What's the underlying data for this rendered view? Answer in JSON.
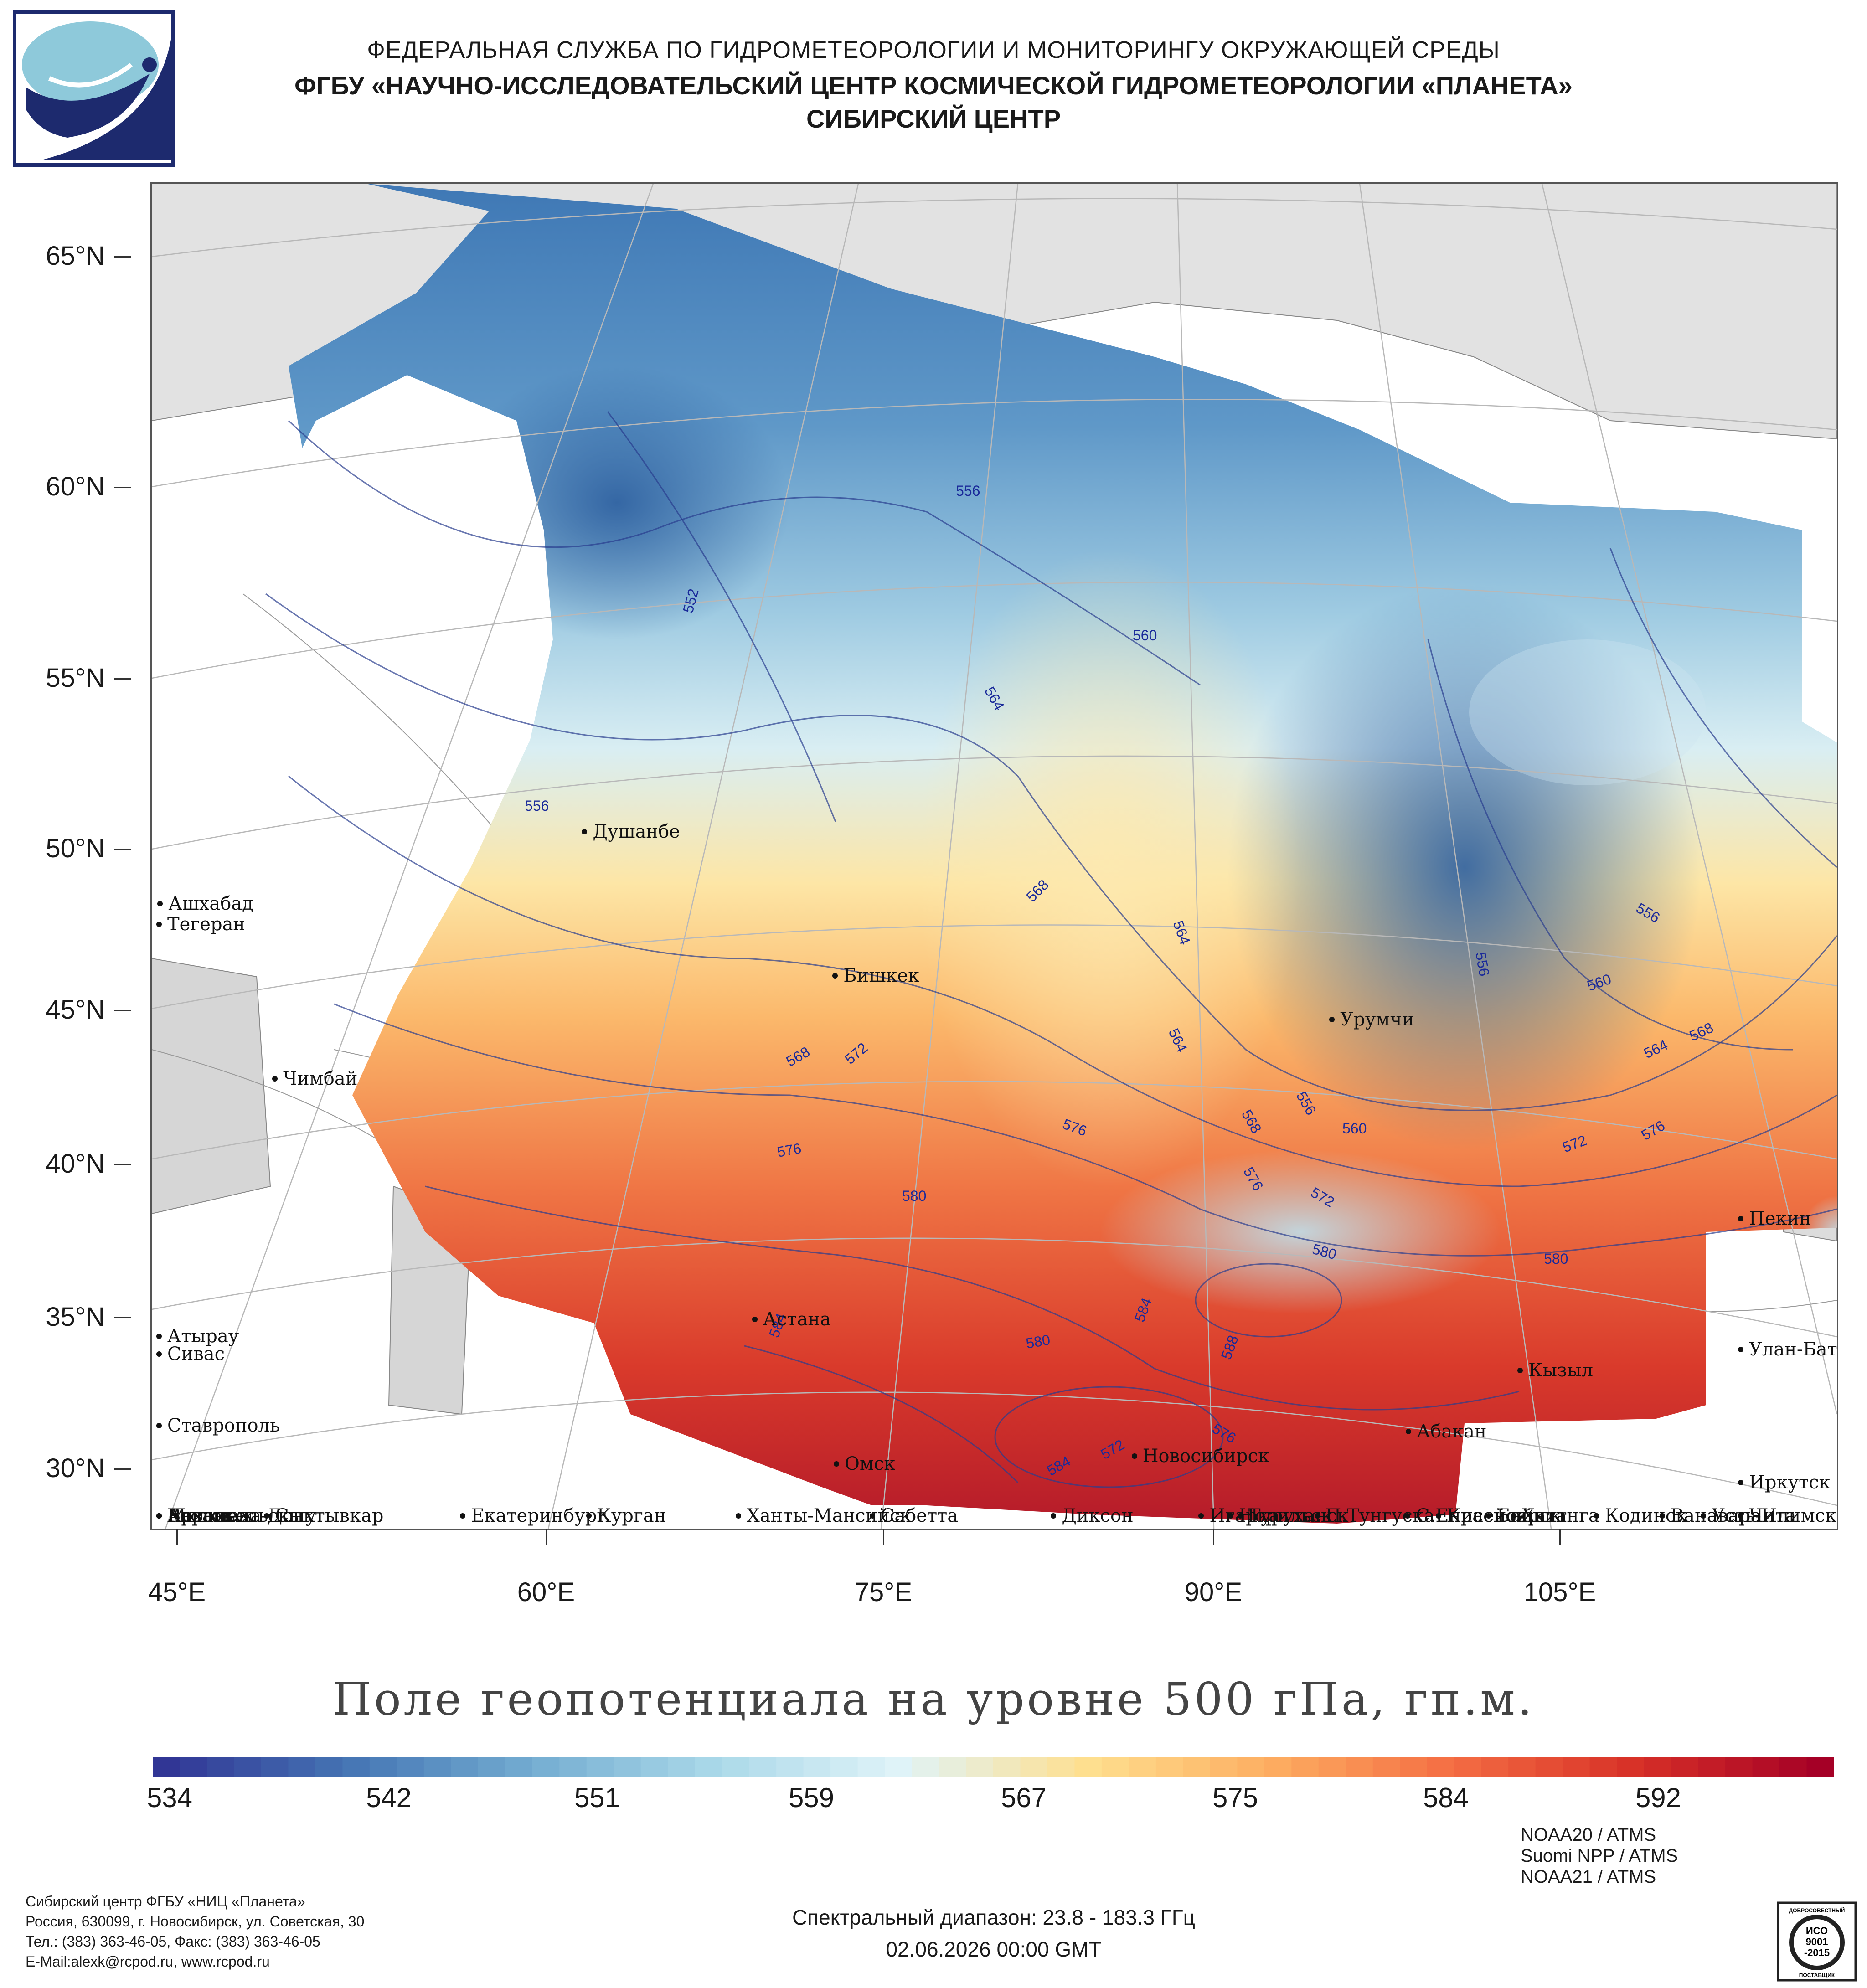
{
  "header": {
    "agency": "ФЕДЕРАЛЬНАЯ СЛУЖБА ПО ГИДРОМЕТЕОРОЛОГИИ И МОНИТОРИНГУ ОКРУЖАЮЩЕЙ СРЕДЫ",
    "org": "ФГБУ «НАУЧНО-ИССЛЕДОВАТЕЛЬСКИЙ ЦЕНТР КОСМИЧЕСКОЙ ГИДРОМЕТЕОРОЛОГИИ «ПЛАНЕТА»",
    "center": "СИБИРСКИЙ ЦЕНТР"
  },
  "map": {
    "title": "Поле геопотенциала на уровне 500 гПа, гп.м.",
    "lat_labels": [
      "65°N",
      "60°N",
      "55°N",
      "50°N",
      "45°N",
      "40°N",
      "35°N",
      "30°N"
    ],
    "lon_labels": [
      "45°E",
      "60°E",
      "75°E",
      "90°E",
      "105°E"
    ],
    "cities": [
      {
        "name": "Диксон",
        "lat": 73.5,
        "lon": 80.5
      },
      {
        "name": "Хатанга",
        "lat": 72.0,
        "lon": 102.5
      },
      {
        "name": "Сабетта",
        "lat": 71.3,
        "lon": 72.1
      },
      {
        "name": "Норильск",
        "lat": 69.3,
        "lon": 88.2
      },
      {
        "name": "Архангельск",
        "lat": 64.5,
        "lon": 40.5
      },
      {
        "name": "Игарка",
        "lat": 67.5,
        "lon": 86.6
      },
      {
        "name": "Туруханск",
        "lat": 65.8,
        "lon": 87.9
      },
      {
        "name": "Сыктывкар",
        "lat": 61.7,
        "lon": 50.8
      },
      {
        "name": "Байкит",
        "lat": 61.7,
        "lon": 96.4
      },
      {
        "name": "Москва",
        "lat": 55.8,
        "lon": 37.6
      },
      {
        "name": "Ханты-Мансийск",
        "lat": 61.0,
        "lon": 69.0
      },
      {
        "name": "П.Тунгуска",
        "lat": 61.6,
        "lon": 90.0
      },
      {
        "name": "Ванавара",
        "lat": 60.3,
        "lon": 102.3
      },
      {
        "name": "С.Енисейск",
        "lat": 60.4,
        "lon": 93.0
      },
      {
        "name": "Казань",
        "lat": 55.8,
        "lon": 49.1
      },
      {
        "name": "Кодинск",
        "lat": 58.7,
        "lon": 99.2
      },
      {
        "name": "Усть-Илимск",
        "lat": 58.0,
        "lon": 102.7
      },
      {
        "name": "Воронеж",
        "lat": 51.7,
        "lon": 39.2
      },
      {
        "name": "Екатеринбург",
        "lat": 56.8,
        "lon": 60.6
      },
      {
        "name": "Курган",
        "lat": 55.4,
        "lon": 65.3
      },
      {
        "name": "Красноярск",
        "lat": 56.0,
        "lon": 92.9
      },
      {
        "name": "Чита",
        "lat": 52.0,
        "lon": 113.5
      },
      {
        "name": "Омск",
        "lat": 55.0,
        "lon": 73.4
      },
      {
        "name": "Новосибирск",
        "lat": 55.0,
        "lon": 82.9
      },
      {
        "name": "Ростов-на-Дону",
        "lat": 47.2,
        "lon": 39.7
      },
      {
        "name": "Абакан",
        "lat": 53.7,
        "lon": 91.4
      },
      {
        "name": "Иркутск",
        "lat": 52.3,
        "lon": 104.3
      },
      {
        "name": "Кызыл",
        "lat": 51.7,
        "lon": 94.4
      },
      {
        "name": "Ставрополь",
        "lat": 45.0,
        "lon": 42.0
      },
      {
        "name": "Астана",
        "lat": 51.2,
        "lon": 71.4
      },
      {
        "name": "Улан-Батор",
        "lat": 47.9,
        "lon": 106.9
      },
      {
        "name": "Атырау",
        "lat": 47.1,
        "lon": 51.9
      },
      {
        "name": "Сивас",
        "lat": 39.7,
        "lon": 37.0
      },
      {
        "name": "Пекин",
        "lat": 39.9,
        "lon": 116.4
      },
      {
        "name": "Чимбай",
        "lat": 42.9,
        "lon": 59.8
      },
      {
        "name": "Урумчи",
        "lat": 43.8,
        "lon": 87.6
      },
      {
        "name": "Бишкек",
        "lat": 42.9,
        "lon": 74.6
      },
      {
        "name": "Ашхабад",
        "lat": 37.9,
        "lon": 58.4
      },
      {
        "name": "Тегеран",
        "lat": 35.7,
        "lon": 51.4
      },
      {
        "name": "Душанбе",
        "lat": 38.6,
        "lon": 68.8
      }
    ],
    "contour_labels": [
      "556",
      "552",
      "560",
      "564",
      "556",
      "568",
      "564",
      "556",
      "560",
      "564",
      "568",
      "572",
      "568",
      "576",
      "564",
      "556",
      "560",
      "576",
      "568",
      "576",
      "572",
      "580",
      "580",
      "580",
      "584",
      "584",
      "580",
      "588",
      "576",
      "584",
      "572",
      "572",
      "576",
      "560"
    ]
  },
  "colorbar": {
    "labels": [
      "534",
      "542",
      "551",
      "559",
      "567",
      "575",
      "584",
      "592"
    ],
    "colors": [
      "#313695",
      "#4575b4",
      "#74add1",
      "#abd9e9",
      "#e0f3f8",
      "#fee090",
      "#fdae61",
      "#f46d43",
      "#d73027",
      "#a50026"
    ]
  },
  "footer": {
    "lines": [
      "Сибирский центр ФГБУ «НИЦ «Планета»",
      "Россия, 630099, г. Новосибирск, ул. Советская, 30",
      "Тел.: (383) 363-46-05, Факс: (383) 363-46-05",
      "E-Mail:alexk@rcpod.ru, www.rcpod.ru"
    ],
    "satellites": [
      "NOAA20 / ATMS",
      "Suomi NPP / ATMS",
      "NOAA21 / ATMS"
    ],
    "spectral": "Спектральный диапазон: 23.8 - 183.3 ГГц",
    "datetime": "02.06.2026 00:00 GMT",
    "stamp": {
      "top": "ДОБРОСОВЕСТНЫЙ",
      "lines": [
        "ИСО",
        "9001",
        "-2015"
      ],
      "bottom": "ПОСТАВЩИК"
    }
  }
}
